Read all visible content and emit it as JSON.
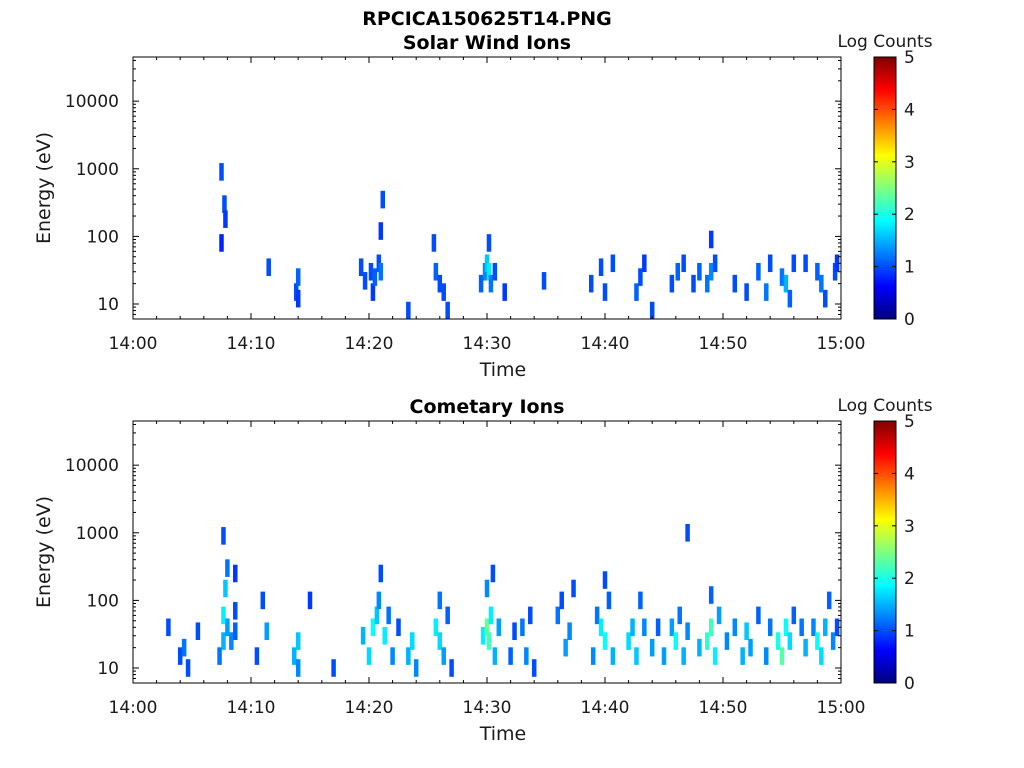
{
  "figure": {
    "title": "RPCICA150625T14.PNG"
  },
  "colors": {
    "axis": "#000000",
    "colormap": "jet",
    "colormap_stops": [
      "#00007f",
      "#0000ff",
      "#007fff",
      "#00ffff",
      "#7fff7f",
      "#ffff00",
      "#ff7f00",
      "#ff0000",
      "#7f0000"
    ]
  },
  "chart_data": [
    {
      "type": "heatmap",
      "title": "Solar Wind Ions",
      "xlabel": "Time",
      "ylabel": "Energy (eV)",
      "yscale": "log",
      "xlim": [
        "14:00",
        "15:00"
      ],
      "ylim": [
        6,
        45000
      ],
      "x_ticks": [
        "14:00",
        "14:10",
        "14:20",
        "14:30",
        "14:40",
        "14:50",
        "15:00"
      ],
      "y_ticks": [
        "10",
        "100",
        "1000",
        "10000"
      ],
      "colorbar": {
        "label": "Log Counts",
        "range": [
          0,
          5
        ],
        "ticks": [
          "0",
          "1",
          "2",
          "3",
          "4",
          "5"
        ]
      },
      "cells": [
        [
          "14:07:30",
          900,
          1.0
        ],
        [
          "14:07:30",
          80,
          0.8
        ],
        [
          "14:07:45",
          300,
          1.0
        ],
        [
          "14:07:50",
          180,
          0.9
        ],
        [
          "14:11:30",
          35,
          1.0
        ],
        [
          "14:13:50",
          15,
          1.0
        ],
        [
          "14:14:00",
          25,
          1.1
        ],
        [
          "14:14:00",
          12,
          0.9
        ],
        [
          "14:19:20",
          35,
          1.0
        ],
        [
          "14:19:40",
          22,
          1.0
        ],
        [
          "14:20:10",
          30,
          1.0
        ],
        [
          "14:20:20",
          15,
          0.9
        ],
        [
          "14:20:30",
          25,
          1.1
        ],
        [
          "14:20:50",
          40,
          1.0
        ],
        [
          "14:21:00",
          30,
          1.2
        ],
        [
          "14:21:10",
          350,
          1.0
        ],
        [
          "14:21:00",
          120,
          0.9
        ],
        [
          "14:23:20",
          8,
          1.0
        ],
        [
          "14:25:30",
          80,
          1.0
        ],
        [
          "14:25:40",
          30,
          1.1
        ],
        [
          "14:26:00",
          20,
          1.0
        ],
        [
          "14:26:20",
          15,
          1.0
        ],
        [
          "14:26:40",
          8,
          1.0
        ],
        [
          "14:29:30",
          20,
          1.1
        ],
        [
          "14:29:50",
          30,
          1.3
        ],
        [
          "14:30:00",
          40,
          1.6
        ],
        [
          "14:30:10",
          30,
          1.8
        ],
        [
          "14:30:20",
          20,
          1.2
        ],
        [
          "14:30:10",
          80,
          1.0
        ],
        [
          "14:30:40",
          30,
          1.0
        ],
        [
          "14:31:30",
          15,
          0.9
        ],
        [
          "14:34:50",
          22,
          1.0
        ],
        [
          "14:38:50",
          20,
          1.0
        ],
        [
          "14:39:40",
          35,
          1.0
        ],
        [
          "14:40:00",
          15,
          1.0
        ],
        [
          "14:40:40",
          40,
          1.0
        ],
        [
          "14:42:40",
          15,
          1.1
        ],
        [
          "14:43:00",
          25,
          1.0
        ],
        [
          "14:43:20",
          40,
          0.9
        ],
        [
          "14:44:00",
          8,
          1.0
        ],
        [
          "14:45:40",
          20,
          1.0
        ],
        [
          "14:46:10",
          30,
          1.1
        ],
        [
          "14:46:40",
          40,
          1.0
        ],
        [
          "14:47:30",
          20,
          1.0
        ],
        [
          "14:48:00",
          30,
          1.1
        ],
        [
          "14:48:40",
          20,
          1.2
        ],
        [
          "14:49:00",
          30,
          1.3
        ],
        [
          "14:49:20",
          40,
          1.0
        ],
        [
          "14:49:00",
          90,
          0.9
        ],
        [
          "14:51:00",
          20,
          1.0
        ],
        [
          "14:52:00",
          15,
          1.0
        ],
        [
          "14:53:00",
          30,
          1.1
        ],
        [
          "14:53:40",
          15,
          1.2
        ],
        [
          "14:54:00",
          40,
          1.0
        ],
        [
          "14:55:00",
          25,
          1.2
        ],
        [
          "14:55:20",
          20,
          1.5
        ],
        [
          "14:55:40",
          12,
          1.1
        ],
        [
          "14:56:00",
          40,
          1.0
        ],
        [
          "14:57:00",
          40,
          1.0
        ],
        [
          "14:58:00",
          30,
          1.1
        ],
        [
          "14:58:20",
          20,
          1.2
        ],
        [
          "14:58:40",
          12,
          1.0
        ],
        [
          "14:59:30",
          30,
          1.0
        ],
        [
          "14:59:40",
          40,
          0.9
        ]
      ]
    },
    {
      "type": "heatmap",
      "title": "Cometary Ions",
      "xlabel": "Time",
      "ylabel": "Energy (eV)",
      "yscale": "log",
      "xlim": [
        "14:00",
        "15:00"
      ],
      "ylim": [
        6,
        45000
      ],
      "x_ticks": [
        "14:00",
        "14:10",
        "14:20",
        "14:30",
        "14:40",
        "14:50",
        "15:00"
      ],
      "y_ticks": [
        "10",
        "100",
        "1000",
        "10000"
      ],
      "colorbar": {
        "label": "Log Counts",
        "range": [
          0,
          5
        ],
        "ticks": [
          "0",
          "1",
          "2",
          "3",
          "4",
          "5"
        ]
      },
      "cells": [
        [
          "14:03:00",
          40,
          1.0
        ],
        [
          "14:04:00",
          15,
          1.0
        ],
        [
          "14:04:20",
          20,
          1.2
        ],
        [
          "14:04:40",
          10,
          1.0
        ],
        [
          "14:05:30",
          35,
          1.0
        ],
        [
          "14:07:20",
          15,
          1.2
        ],
        [
          "14:07:40",
          25,
          1.5
        ],
        [
          "14:07:40",
          60,
          1.8
        ],
        [
          "14:07:50",
          150,
          1.6
        ],
        [
          "14:08:00",
          300,
          1.2
        ],
        [
          "14:07:40",
          900,
          1.0
        ],
        [
          "14:08:00",
          40,
          1.4
        ],
        [
          "14:08:20",
          25,
          1.3
        ],
        [
          "14:08:40",
          70,
          1.0
        ],
        [
          "14:08:40",
          35,
          1.1
        ],
        [
          "14:08:40",
          250,
          0.9
        ],
        [
          "14:11:00",
          100,
          1.0
        ],
        [
          "14:11:20",
          35,
          1.4
        ],
        [
          "14:10:30",
          15,
          1.0
        ],
        [
          "14:13:40",
          15,
          1.5
        ],
        [
          "14:14:00",
          25,
          1.6
        ],
        [
          "14:14:00",
          10,
          1.3
        ],
        [
          "14:15:00",
          100,
          0.9
        ],
        [
          "14:17:00",
          10,
          1.0
        ],
        [
          "14:19:30",
          30,
          1.5
        ],
        [
          "14:20:00",
          15,
          1.7
        ],
        [
          "14:20:20",
          40,
          1.9
        ],
        [
          "14:20:40",
          60,
          1.6
        ],
        [
          "14:20:50",
          100,
          1.3
        ],
        [
          "14:21:00",
          250,
          1.0
        ],
        [
          "14:21:20",
          30,
          1.8
        ],
        [
          "14:21:40",
          60,
          1.2
        ],
        [
          "14:22:00",
          15,
          1.3
        ],
        [
          "14:22:30",
          40,
          1.0
        ],
        [
          "14:23:20",
          15,
          1.5
        ],
        [
          "14:23:40",
          25,
          1.7
        ],
        [
          "14:24:00",
          10,
          1.3
        ],
        [
          "14:25:40",
          40,
          1.8
        ],
        [
          "14:26:00",
          25,
          1.7
        ],
        [
          "14:26:00",
          100,
          1.2
        ],
        [
          "14:26:20",
          15,
          1.4
        ],
        [
          "14:26:40",
          60,
          1.1
        ],
        [
          "14:27:00",
          10,
          1.0
        ],
        [
          "14:29:40",
          30,
          1.8
        ],
        [
          "14:30:00",
          40,
          2.4
        ],
        [
          "14:30:10",
          25,
          2.2
        ],
        [
          "14:30:20",
          60,
          1.8
        ],
        [
          "14:30:00",
          150,
          1.3
        ],
        [
          "14:30:30",
          250,
          1.0
        ],
        [
          "14:30:40",
          15,
          1.5
        ],
        [
          "14:31:00",
          40,
          1.4
        ],
        [
          "14:32:00",
          15,
          1.1
        ],
        [
          "14:32:20",
          35,
          1.0
        ],
        [
          "14:33:00",
          40,
          1.2
        ],
        [
          "14:33:20",
          15,
          1.3
        ],
        [
          "14:33:40",
          60,
          1.0
        ],
        [
          "14:34:00",
          10,
          1.0
        ],
        [
          "14:36:00",
          60,
          1.2
        ],
        [
          "14:36:20",
          100,
          1.0
        ],
        [
          "14:36:40",
          20,
          1.4
        ],
        [
          "14:37:00",
          35,
          1.3
        ],
        [
          "14:37:20",
          150,
          1.0
        ],
        [
          "14:39:00",
          15,
          1.3
        ],
        [
          "14:39:20",
          60,
          1.2
        ],
        [
          "14:39:40",
          40,
          1.8
        ],
        [
          "14:40:00",
          25,
          1.9
        ],
        [
          "14:40:00",
          200,
          1.0
        ],
        [
          "14:40:20",
          100,
          1.1
        ],
        [
          "14:40:40",
          15,
          1.5
        ],
        [
          "14:42:00",
          25,
          1.7
        ],
        [
          "14:42:20",
          40,
          1.5
        ],
        [
          "14:42:40",
          15,
          1.6
        ],
        [
          "14:43:00",
          100,
          1.1
        ],
        [
          "14:43:20",
          40,
          1.3
        ],
        [
          "14:44:00",
          20,
          1.4
        ],
        [
          "14:44:30",
          40,
          1.1
        ],
        [
          "14:45:00",
          15,
          1.4
        ],
        [
          "14:45:40",
          40,
          1.4
        ],
        [
          "14:46:00",
          25,
          1.9
        ],
        [
          "14:46:20",
          60,
          1.2
        ],
        [
          "14:46:40",
          15,
          1.5
        ],
        [
          "14:47:00",
          35,
          1.3
        ],
        [
          "14:47:00",
          1000,
          1.0
        ],
        [
          "14:48:00",
          20,
          1.5
        ],
        [
          "14:48:40",
          25,
          2.1
        ],
        [
          "14:49:00",
          40,
          2.2
        ],
        [
          "14:49:20",
          15,
          1.8
        ],
        [
          "14:49:40",
          60,
          1.4
        ],
        [
          "14:49:00",
          120,
          1.1
        ],
        [
          "14:50:20",
          25,
          1.3
        ],
        [
          "14:51:00",
          40,
          1.3
        ],
        [
          "14:51:40",
          15,
          1.5
        ],
        [
          "14:52:00",
          35,
          1.6
        ],
        [
          "14:52:20",
          20,
          1.4
        ],
        [
          "14:53:00",
          60,
          1.1
        ],
        [
          "14:53:40",
          15,
          1.3
        ],
        [
          "14:54:00",
          40,
          1.2
        ],
        [
          "14:54:40",
          25,
          2.0
        ],
        [
          "14:55:00",
          15,
          2.3
        ],
        [
          "14:55:20",
          40,
          1.9
        ],
        [
          "14:55:40",
          25,
          1.7
        ],
        [
          "14:56:00",
          60,
          1.1
        ],
        [
          "14:56:40",
          40,
          1.2
        ],
        [
          "14:57:00",
          20,
          1.5
        ],
        [
          "14:57:40",
          40,
          1.3
        ],
        [
          "14:58:00",
          25,
          1.9
        ],
        [
          "14:58:20",
          15,
          1.7
        ],
        [
          "14:58:40",
          40,
          1.5
        ],
        [
          "14:59:00",
          100,
          1.1
        ],
        [
          "14:59:20",
          25,
          1.3
        ],
        [
          "14:59:40",
          40,
          1.0
        ]
      ]
    }
  ]
}
